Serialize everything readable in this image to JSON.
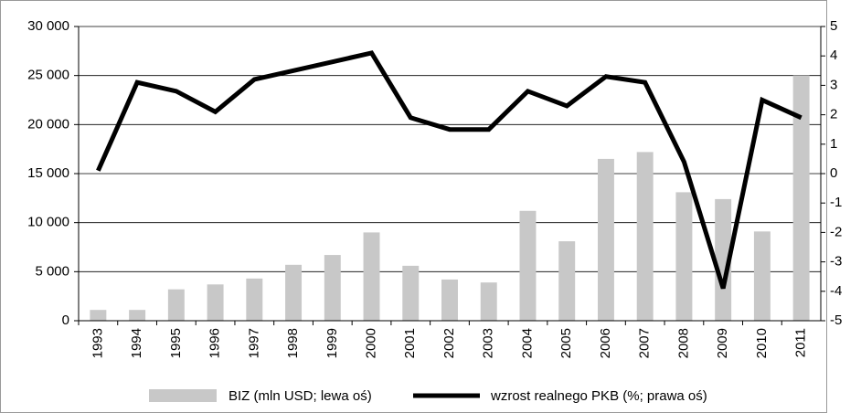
{
  "chart_data": {
    "type": "bar",
    "categories": [
      "1993",
      "1994",
      "1995",
      "1996",
      "1997",
      "1998",
      "1999",
      "2000",
      "2001",
      "2002",
      "2003",
      "2004",
      "2005",
      "2006",
      "2007",
      "2008",
      "2009",
      "2010",
      "2011"
    ],
    "series": [
      {
        "name": "BIZ (mln USD; lewa oś)",
        "type": "bar",
        "color": "#c8c8c8",
        "axis": "y",
        "values": [
          1100,
          1100,
          3200,
          3700,
          4300,
          5700,
          6700,
          9000,
          5600,
          4200,
          3900,
          11200,
          8100,
          16500,
          17200,
          13100,
          12400,
          9100,
          25000
        ]
      },
      {
        "name": "wzrost realnego PKB (%; prawa oś)",
        "type": "line",
        "color": "#000000",
        "axis": "y2",
        "values": [
          0.1,
          3.1,
          2.8,
          2.1,
          3.2,
          3.5,
          3.8,
          4.1,
          1.9,
          1.5,
          1.5,
          2.8,
          2.3,
          3.3,
          3.1,
          0.4,
          -3.9,
          2.5,
          1.9
        ]
      }
    ],
    "ylim": [
      0,
      30000
    ],
    "yticks": [
      0,
      {
        "value": 5000,
        "label": "5 000"
      },
      {
        "value": 10000,
        "label": "10 000"
      },
      {
        "value": 15000,
        "label": "15 000"
      },
      {
        "value": 20000,
        "label": "20 000"
      },
      {
        "value": 25000,
        "label": "25 000"
      },
      {
        "value": 30000,
        "label": "30 000"
      }
    ],
    "y2lim": [
      -5,
      5
    ],
    "y2ticks": [
      -5,
      -4,
      -3,
      -2,
      -1,
      0,
      1,
      2,
      3,
      4,
      5
    ],
    "grid": true,
    "legend": "bottom"
  }
}
